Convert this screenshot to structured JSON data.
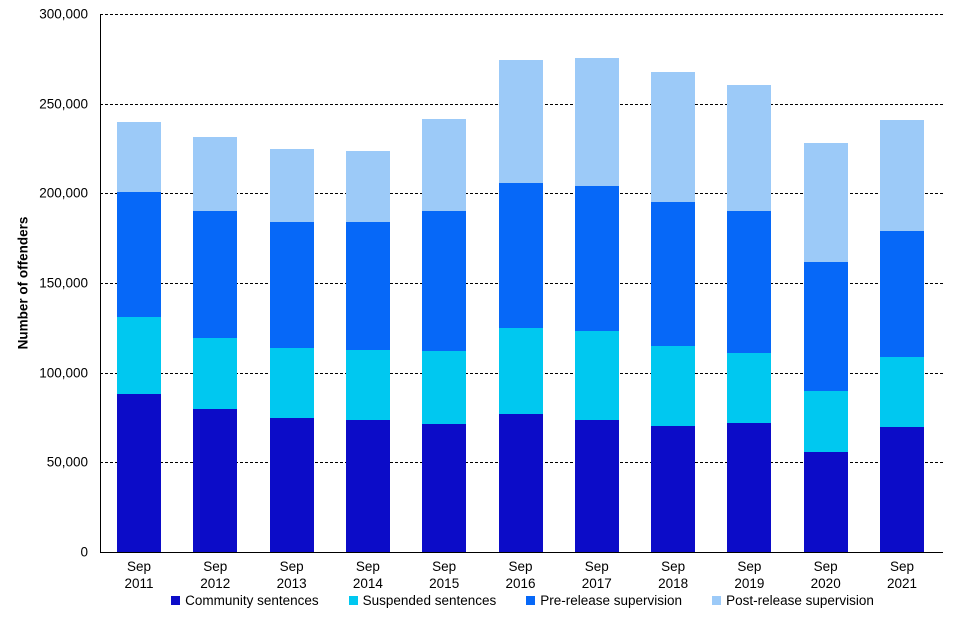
{
  "chart_data": {
    "type": "bar",
    "stacked": true,
    "title": "",
    "xlabel": "",
    "ylabel": "Number of offenders",
    "ylim": [
      0,
      300000
    ],
    "ytick_interval": 50000,
    "yticks": [
      0,
      50000,
      100000,
      150000,
      200000,
      250000,
      300000
    ],
    "ytick_labels": [
      "0",
      "50,000",
      "100,000",
      "150,000",
      "200,000",
      "250,000",
      "300,000"
    ],
    "grid": "horizontal-dashed",
    "legend_position": "bottom",
    "categories": [
      "Sep 2011",
      "Sep 2012",
      "Sep 2013",
      "Sep 2014",
      "Sep 2015",
      "Sep 2016",
      "Sep 2017",
      "Sep 2018",
      "Sep 2019",
      "Sep 2020",
      "Sep 2021"
    ],
    "series": [
      {
        "name": "Community sentences",
        "color": "#0c0cc8",
        "values": [
          88000,
          80000,
          75000,
          73500,
          71500,
          77000,
          73500,
          70500,
          72000,
          56000,
          69500
        ]
      },
      {
        "name": "Suspended sentences",
        "color": "#00c8f0",
        "values": [
          43000,
          39500,
          38500,
          39000,
          40500,
          48000,
          50000,
          44500,
          39000,
          34000,
          39500
        ]
      },
      {
        "name": "Pre-release supervision",
        "color": "#0668f8",
        "values": [
          69500,
          70500,
          70500,
          71500,
          78000,
          80500,
          80500,
          80000,
          79000,
          71500,
          70000
        ]
      },
      {
        "name": "Post-release supervision",
        "color": "#9ccaf8",
        "values": [
          39500,
          41500,
          41000,
          39500,
          51500,
          69000,
          71500,
          72500,
          70500,
          66500,
          62000
        ]
      }
    ],
    "totals": [
      240000,
      231500,
      225000,
      223500,
      241500,
      274500,
      275500,
      267500,
      260500,
      228000,
      241000
    ]
  },
  "axis": {
    "y_title": "Number of offenders"
  }
}
